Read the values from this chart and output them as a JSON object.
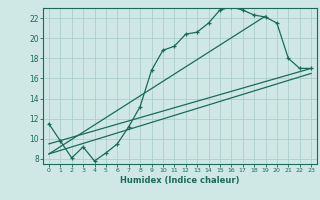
{
  "xlabel": "Humidex (Indice chaleur)",
  "bg_color": "#cfe8e5",
  "line_color": "#1a6b5a",
  "grid_color": "#aed0cc",
  "xlim": [
    -0.5,
    23.5
  ],
  "ylim": [
    7.5,
    23.0
  ],
  "xticks": [
    0,
    1,
    2,
    3,
    4,
    5,
    6,
    7,
    8,
    9,
    10,
    11,
    12,
    13,
    14,
    15,
    16,
    17,
    18,
    19,
    20,
    21,
    22,
    23
  ],
  "yticks": [
    8,
    10,
    12,
    14,
    16,
    18,
    20,
    22
  ],
  "series1_x": [
    0,
    1,
    2,
    3,
    4,
    5,
    6,
    7,
    8,
    9,
    10,
    11,
    12,
    13,
    14,
    15,
    16,
    17,
    18,
    19,
    20,
    21,
    22,
    23
  ],
  "series1_y": [
    11.5,
    9.8,
    8.1,
    9.2,
    7.8,
    8.6,
    9.5,
    11.2,
    13.2,
    16.8,
    18.8,
    19.2,
    20.4,
    20.6,
    21.5,
    22.8,
    23.1,
    22.8,
    22.3,
    22.1,
    21.5,
    18.0,
    17.0,
    17.0
  ],
  "series2_x": [
    0,
    23
  ],
  "series2_y": [
    8.5,
    16.5
  ],
  "series3_x": [
    0,
    19
  ],
  "series3_y": [
    8.5,
    22.2
  ],
  "series4_x": [
    0,
    23
  ],
  "series4_y": [
    9.5,
    17.0
  ]
}
